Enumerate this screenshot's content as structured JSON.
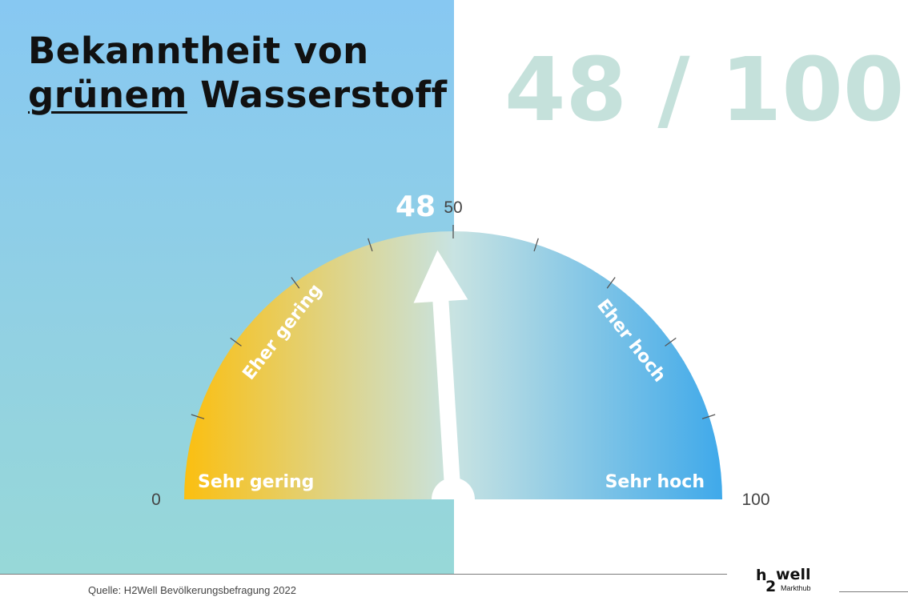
{
  "title": {
    "line1": "Bekanntheit von",
    "highlight": "grünem",
    "line2_rest": "Wasserstoff"
  },
  "score_display": "48 / 100",
  "chart_data": {
    "type": "gauge",
    "value": 48,
    "value_label": "48",
    "min": 0,
    "max": 100,
    "min_label": "0",
    "mid_label": "50",
    "max_label": "100",
    "ticks": [
      10,
      20,
      30,
      40,
      50,
      60,
      70,
      80,
      90
    ],
    "zones": [
      {
        "label": "Sehr gering"
      },
      {
        "label": "Eher gering"
      },
      {
        "label": "Eher hoch"
      },
      {
        "label": "Sehr hoch"
      }
    ],
    "colors": {
      "low": "#fbbf10",
      "mid": "#c8e3e2",
      "high": "#3fa9ea",
      "needle": "#ffffff",
      "tick": "#555555",
      "big_score": "#c5e1db",
      "left_panel_top": "#87c8f2",
      "left_panel_bottom": "#97d8d8"
    }
  },
  "footer": {
    "source": "Quelle: H2Well Bevölkerungsbefragung 2022"
  },
  "logo": {
    "h": "h",
    "two": "2",
    "well": "well",
    "sub": "Markthub"
  }
}
